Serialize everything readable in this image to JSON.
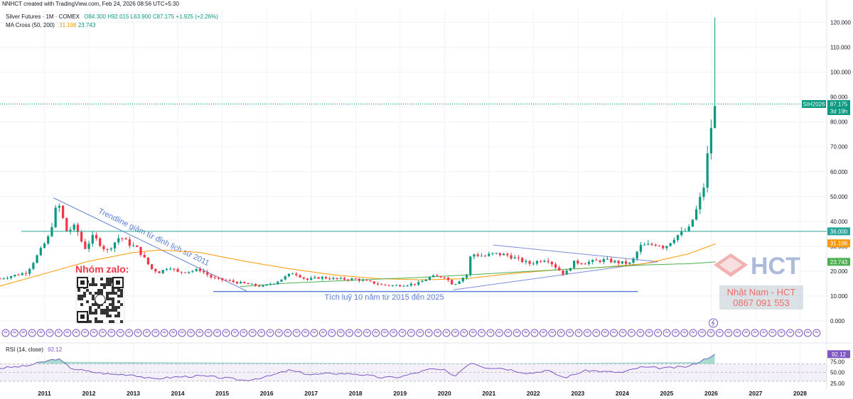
{
  "credit": "NNHCT created with TradingView.com, Feb 24, 2026 08:56 UTC+5:30",
  "legend": {
    "symbol": "Silver Futures · 1M · COMEX",
    "open": "O84.300",
    "high": "H92.015",
    "low": "L63.900",
    "close": "C87.175",
    "change": "+1.925 (+2.26%)",
    "ma_label": "MA Cross (50, 200)",
    "ma_fast": "31.198",
    "ma_slow": "23.743",
    "rsi_label": "RSI (14, close)",
    "rsi_value": "92.12"
  },
  "badges": {
    "symbol": "SIH2026",
    "price": "87.175",
    "countdown": "3d 19h",
    "level": "36.000",
    "ma_fast": "31.198",
    "ma_slow": "23.743",
    "rsi": "92.12"
  },
  "annotations": {
    "trendline": "Trendline giảm từ đỉnh lịch sử 2011",
    "accumulation": "Tích luỹ 10 năm từ 2015 đến 2025",
    "zalo": "Nhóm zalo:",
    "logo": "HCT",
    "author": "Nhật Nam - HCT",
    "phone": "0867 091 553"
  },
  "colors": {
    "up": "#089981",
    "down": "#f23645",
    "ma_fast": "#ff9800",
    "ma_slow": "#4caf50",
    "rsi": "#7e57c2",
    "trend": "#5b7fd6",
    "level": "#26a69a"
  },
  "chart_data": [
    {
      "type": "candlestick",
      "y_axis_ticks": [
        "0.000",
        "10.000",
        "20.000",
        "30.000",
        "40.000",
        "50.000",
        "60.000",
        "70.000",
        "80.000",
        "90.000",
        "100.000",
        "110.000",
        "120.000"
      ],
      "x_axis_ticks": [
        "2011",
        "2012",
        "2013",
        "2014",
        "2015",
        "2016",
        "2017",
        "2018",
        "2019",
        "2020",
        "2021",
        "2022",
        "2023",
        "2024",
        "2025",
        "2026",
        "2027",
        "2028"
      ],
      "ylim": [
        0,
        125
      ],
      "horizontal_level": 36.0,
      "last_close": 87.175,
      "anchors": [
        [
          2010.0,
          17.0
        ],
        [
          2010.6,
          19.5
        ],
        [
          2010.9,
          28.0
        ],
        [
          2011.1,
          34.0
        ],
        [
          2011.3,
          48.0
        ],
        [
          2011.5,
          36.0
        ],
        [
          2011.7,
          38.0
        ],
        [
          2011.9,
          29.0
        ],
        [
          2012.1,
          34.0
        ],
        [
          2012.4,
          28.0
        ],
        [
          2012.7,
          34.0
        ],
        [
          2012.9,
          31.0
        ],
        [
          2013.1,
          29.0
        ],
        [
          2013.4,
          21.0
        ],
        [
          2013.6,
          19.5
        ],
        [
          2013.8,
          22.0
        ],
        [
          2014.0,
          19.5
        ],
        [
          2014.5,
          20.5
        ],
        [
          2014.8,
          17.0
        ],
        [
          2015.0,
          16.5
        ],
        [
          2015.5,
          15.0
        ],
        [
          2015.9,
          13.8
        ],
        [
          2016.2,
          15.5
        ],
        [
          2016.6,
          19.5
        ],
        [
          2016.9,
          16.5
        ],
        [
          2017.2,
          17.5
        ],
        [
          2017.6,
          16.8
        ],
        [
          2018.0,
          16.8
        ],
        [
          2018.6,
          14.5
        ],
        [
          2018.9,
          14.2
        ],
        [
          2019.4,
          15.0
        ],
        [
          2019.7,
          17.8
        ],
        [
          2020.0,
          17.8
        ],
        [
          2020.2,
          14.5
        ],
        [
          2020.5,
          18.5
        ],
        [
          2020.6,
          27.0
        ],
        [
          2020.9,
          26.0
        ],
        [
          2021.1,
          27.0
        ],
        [
          2021.4,
          26.5
        ],
        [
          2021.9,
          23.0
        ],
        [
          2022.3,
          25.0
        ],
        [
          2022.7,
          18.5
        ],
        [
          2022.9,
          23.5
        ],
        [
          2023.2,
          23.5
        ],
        [
          2023.6,
          24.5
        ],
        [
          2023.9,
          23.5
        ],
        [
          2024.2,
          23.0
        ],
        [
          2024.4,
          30.0
        ],
        [
          2024.8,
          31.0
        ],
        [
          2024.95,
          29.5
        ],
        [
          2025.2,
          34.0
        ],
        [
          2025.5,
          37.0
        ],
        [
          2025.7,
          46.0
        ],
        [
          2025.85,
          55.0
        ],
        [
          2025.95,
          72.0
        ],
        [
          2026.05,
          84.0
        ],
        [
          2026.13,
          87.175
        ]
      ],
      "ma_fast_anchors": [
        [
          2010.0,
          14.0
        ],
        [
          2011.0,
          19.0
        ],
        [
          2012.0,
          24.0
        ],
        [
          2013.0,
          27.5
        ],
        [
          2013.6,
          28.5
        ],
        [
          2014.5,
          27.5
        ],
        [
          2015.5,
          24.0
        ],
        [
          2016.5,
          21.0
        ],
        [
          2017.5,
          18.5
        ],
        [
          2018.5,
          17.0
        ],
        [
          2019.5,
          16.5
        ],
        [
          2020.5,
          17.0
        ],
        [
          2021.5,
          19.0
        ],
        [
          2022.5,
          20.5
        ],
        [
          2023.5,
          21.5
        ],
        [
          2024.5,
          23.0
        ],
        [
          2025.5,
          27.0
        ],
        [
          2026.13,
          31.198
        ]
      ],
      "ma_slow_anchors": [
        [
          2015.4,
          13.8
        ],
        [
          2016.5,
          15.2
        ],
        [
          2017.5,
          16.0
        ],
        [
          2018.5,
          16.8
        ],
        [
          2019.5,
          17.5
        ],
        [
          2020.5,
          18.5
        ],
        [
          2021.5,
          19.5
        ],
        [
          2022.5,
          20.5
        ],
        [
          2023.5,
          21.5
        ],
        [
          2024.5,
          22.5
        ],
        [
          2025.5,
          23.0
        ],
        [
          2026.13,
          23.743
        ]
      ]
    },
    {
      "type": "line",
      "name": "RSI (14, close)",
      "y_axis_ticks": [
        "25.00",
        "50.00",
        "75.00"
      ],
      "band": [
        30,
        70
      ],
      "ylim": [
        25,
        100
      ],
      "anchors": [
        [
          2010.0,
          60
        ],
        [
          2010.6,
          65
        ],
        [
          2011.0,
          75
        ],
        [
          2011.3,
          82
        ],
        [
          2011.6,
          60
        ],
        [
          2012.0,
          52
        ],
        [
          2012.5,
          46
        ],
        [
          2013.0,
          45
        ],
        [
          2013.4,
          35
        ],
        [
          2014.0,
          40
        ],
        [
          2014.5,
          42
        ],
        [
          2015.0,
          38
        ],
        [
          2015.5,
          32
        ],
        [
          2016.0,
          40
        ],
        [
          2016.5,
          55
        ],
        [
          2017.0,
          45
        ],
        [
          2017.5,
          48
        ],
        [
          2018.0,
          47
        ],
        [
          2018.6,
          38
        ],
        [
          2019.0,
          40
        ],
        [
          2019.7,
          58
        ],
        [
          2020.0,
          55
        ],
        [
          2020.2,
          40
        ],
        [
          2020.6,
          74
        ],
        [
          2020.9,
          62
        ],
        [
          2021.3,
          60
        ],
        [
          2021.9,
          48
        ],
        [
          2022.3,
          55
        ],
        [
          2022.7,
          38
        ],
        [
          2023.2,
          55
        ],
        [
          2023.6,
          52
        ],
        [
          2024.0,
          50
        ],
        [
          2024.4,
          62
        ],
        [
          2025.0,
          60
        ],
        [
          2025.5,
          64
        ],
        [
          2025.8,
          78
        ],
        [
          2026.0,
          88
        ],
        [
          2026.13,
          92.12
        ]
      ]
    }
  ]
}
